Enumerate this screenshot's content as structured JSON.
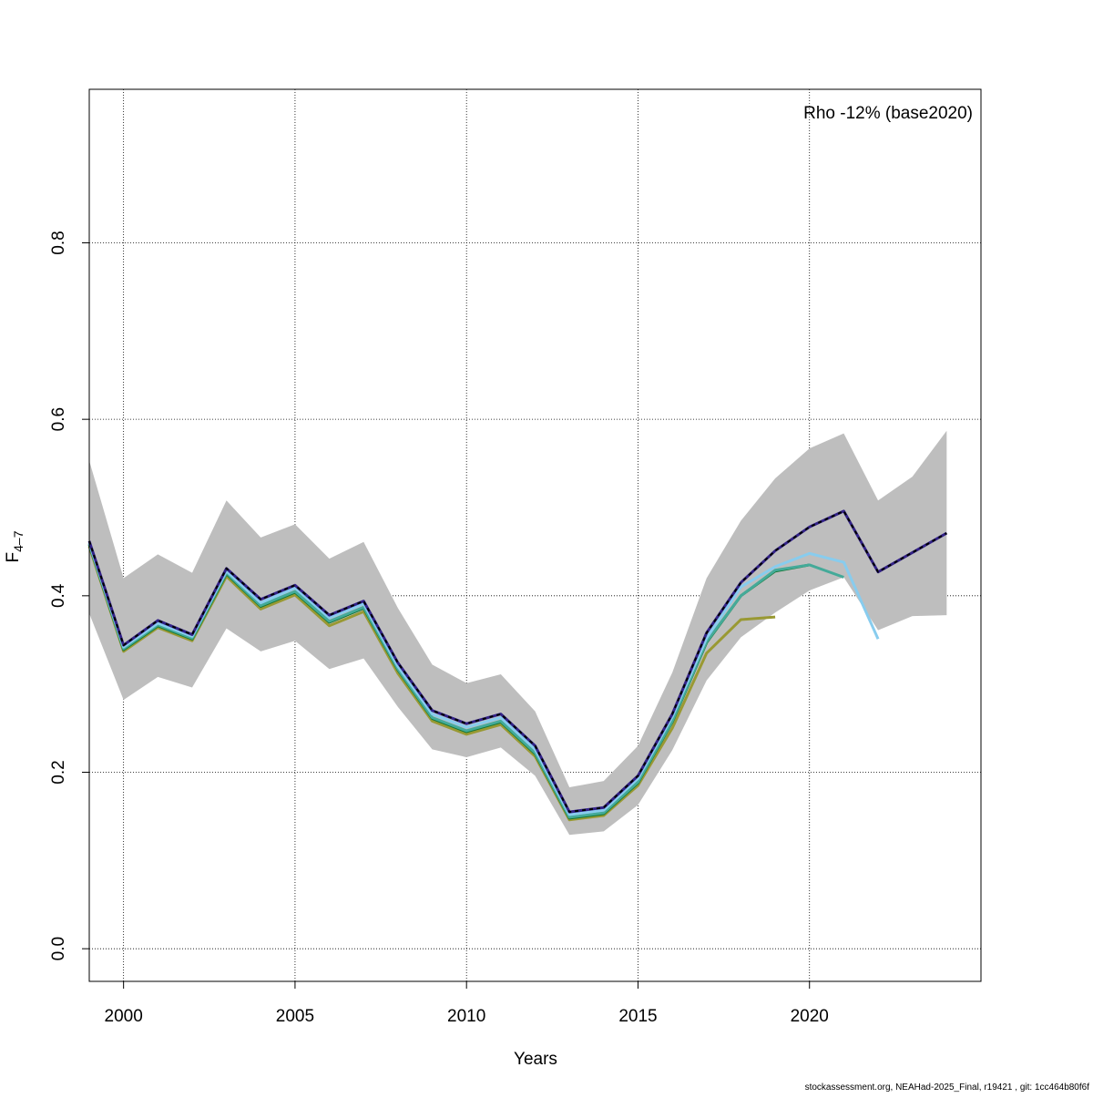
{
  "chart_data": {
    "type": "line",
    "title": "",
    "xlabel": "Years",
    "ylabel_main": "F",
    "ylabel_sub": "4–7",
    "annotation": "Rho -12% (base2020)",
    "footer": "stockassessment.org, NEAHad-2025_Final, r19421 , git: 1cc464b80f6f",
    "xlim": [
      1999,
      2025
    ],
    "ylim": [
      -0.037,
      0.974
    ],
    "grid": true,
    "x_ticks": [
      2000,
      2005,
      2010,
      2015,
      2020
    ],
    "x_tick_labels": [
      "2000",
      "2005",
      "2010",
      "2015",
      "2020"
    ],
    "y_ticks": [
      0.0,
      0.2,
      0.4,
      0.6,
      0.8
    ],
    "y_tick_labels": [
      "0.0",
      "0.2",
      "0.4",
      "0.6",
      "0.8"
    ],
    "band": {
      "color": "#bebebe",
      "x_start": 1999,
      "upper": [
        0.553,
        0.42,
        0.447,
        0.426,
        0.508,
        0.466,
        0.481,
        0.442,
        0.461,
        0.386,
        0.322,
        0.301,
        0.311,
        0.269,
        0.183,
        0.19,
        0.23,
        0.313,
        0.42,
        0.485,
        0.533,
        0.567,
        0.584,
        0.508,
        0.535,
        0.587
      ],
      "lower": [
        0.38,
        0.282,
        0.308,
        0.296,
        0.363,
        0.337,
        0.349,
        0.317,
        0.329,
        0.274,
        0.226,
        0.217,
        0.228,
        0.196,
        0.129,
        0.133,
        0.163,
        0.225,
        0.304,
        0.353,
        0.381,
        0.406,
        0.421,
        0.361,
        0.377,
        0.378
      ]
    },
    "series": [
      {
        "color": "#999933",
        "x_start": 1999,
        "values": [
          0.456,
          0.337,
          0.364,
          0.349,
          0.422,
          0.385,
          0.401,
          0.366,
          0.382,
          0.312,
          0.258,
          0.243,
          0.254,
          0.218,
          0.146,
          0.151,
          0.185,
          0.25,
          0.335,
          0.373,
          0.376
        ]
      },
      {
        "color": "#117733",
        "x_start": 1999,
        "values": [
          0.458,
          0.339,
          0.366,
          0.351,
          0.425,
          0.388,
          0.404,
          0.37,
          0.386,
          0.316,
          0.261,
          0.246,
          0.257,
          0.221,
          0.148,
          0.153,
          0.188,
          0.257,
          0.347,
          0.4,
          0.428,
          0.435
        ]
      },
      {
        "color": "#44AA99",
        "x_start": 1999,
        "values": [
          0.459,
          0.34,
          0.367,
          0.352,
          0.426,
          0.389,
          0.405,
          0.371,
          0.387,
          0.317,
          0.262,
          0.247,
          0.258,
          0.222,
          0.149,
          0.154,
          0.189,
          0.258,
          0.348,
          0.4,
          0.429,
          0.435,
          0.421
        ]
      },
      {
        "color": "#88CCEE",
        "x_start": 1999,
        "values": [
          0.46,
          0.342,
          0.369,
          0.354,
          0.428,
          0.392,
          0.409,
          0.375,
          0.391,
          0.32,
          0.266,
          0.251,
          0.262,
          0.226,
          0.152,
          0.157,
          0.193,
          0.263,
          0.352,
          0.41,
          0.433,
          0.448,
          0.438,
          0.351
        ]
      },
      {
        "color": "#332288",
        "x_start": 1999,
        "values": [
          0.462,
          0.344,
          0.372,
          0.356,
          0.431,
          0.396,
          0.412,
          0.378,
          0.394,
          0.324,
          0.27,
          0.255,
          0.266,
          0.23,
          0.155,
          0.16,
          0.196,
          0.266,
          0.358,
          0.415,
          0.451,
          0.478,
          0.496,
          0.427,
          0.449,
          0.471
        ]
      },
      {
        "color": "#000000",
        "dashed": true,
        "x_start": 1999,
        "values": [
          0.462,
          0.344,
          0.372,
          0.356,
          0.431,
          0.396,
          0.412,
          0.378,
          0.394,
          0.324,
          0.27,
          0.255,
          0.266,
          0.23,
          0.155,
          0.16,
          0.196,
          0.266,
          0.358,
          0.415,
          0.451,
          0.478,
          0.496,
          0.427,
          0.449,
          0.471
        ]
      }
    ]
  }
}
